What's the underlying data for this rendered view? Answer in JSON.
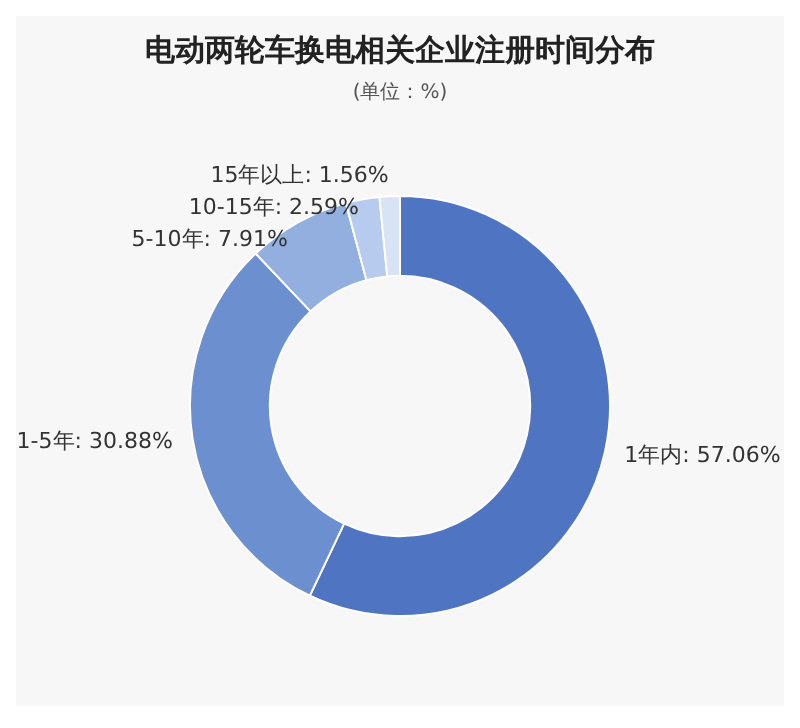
{
  "chart_data": {
    "type": "donut",
    "title": "电动两轮车换电相关企业注册时间分布",
    "subtitle": "(单位：%)",
    "categories": [
      "1年内",
      "1-5年",
      "5-10年",
      "10-15年",
      "15年以上"
    ],
    "values": [
      57.06,
      30.88,
      7.91,
      2.59,
      1.56
    ],
    "value_labels": [
      "57.06%",
      "30.88%",
      "7.91%",
      "2.59%",
      "1.56%"
    ],
    "colors": [
      "#4f75c2",
      "#6c8fd0",
      "#92afe0",
      "#b7cbee",
      "#d8e3f6"
    ],
    "legend": false
  }
}
